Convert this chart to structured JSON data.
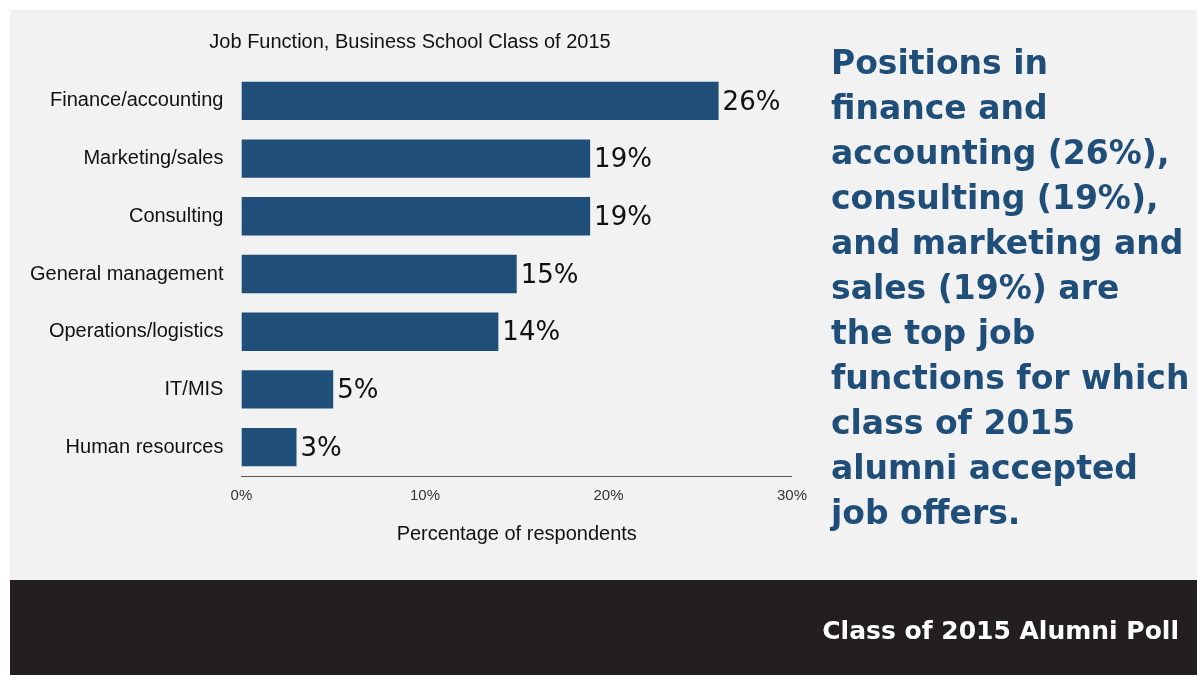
{
  "chart_data": {
    "type": "bar",
    "orientation": "horizontal",
    "title": "Job Function, Business School Class of 2015",
    "xlabel": "Percentage of respondents",
    "categories": [
      "Finance/accounting",
      "Marketing/sales",
      "Consulting",
      "General management",
      "Operations/logistics",
      "IT/MIS",
      "Human resources"
    ],
    "values": [
      26,
      19,
      19,
      15,
      14,
      5,
      3
    ],
    "color": "#1f4e79",
    "value_labels": [
      "26%",
      "19%",
      "19%",
      "15%",
      "14%",
      "5%",
      "3%"
    ],
    "xlim": [
      0,
      30
    ],
    "xticks": [
      {
        "value": 0,
        "label": "0%"
      },
      {
        "value": 10,
        "label": "10%"
      },
      {
        "value": 20,
        "label": "20%"
      },
      {
        "value": 30,
        "label": "30%"
      }
    ],
    "grid": false,
    "legend": false,
    "annotations": [
      "Positions in finance and accounting (26%), consulting (19%), and marketing and sales (19%) are the top job functions for which class of 2015 alumni accepted job offers.",
      "Class of 2015 Alumni Poll"
    ]
  }
}
